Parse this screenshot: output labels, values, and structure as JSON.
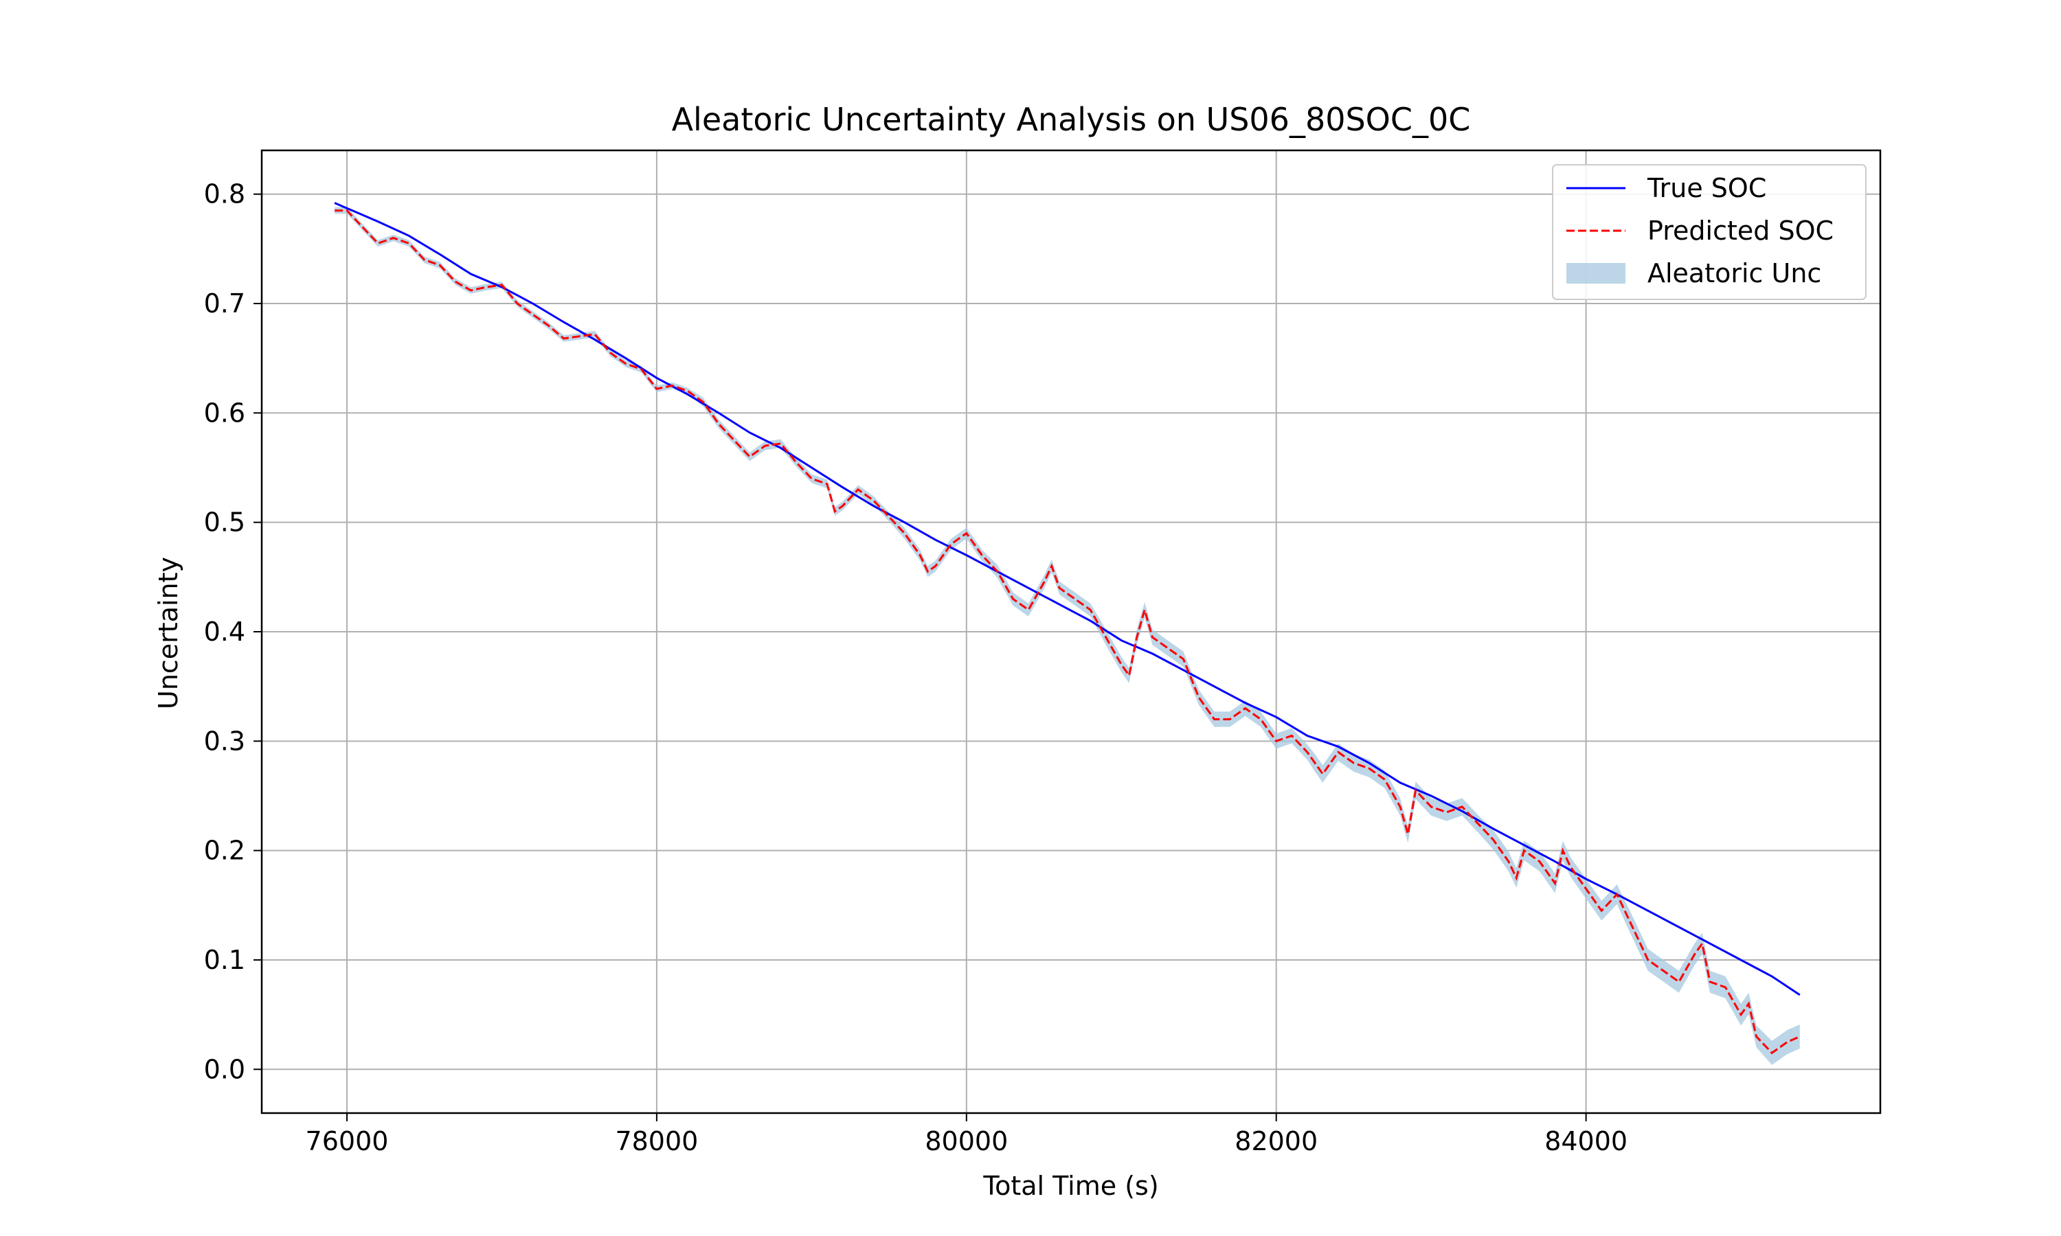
{
  "chart_data": {
    "type": "line",
    "title": "Aleatoric Uncertainty Analysis on US06_80SOC_0C",
    "xlabel": "Total Time (s)",
    "ylabel": "Uncertainty",
    "xlim": [
      75450,
      85900
    ],
    "ylim": [
      -0.04,
      0.84
    ],
    "xticks": [
      76000,
      78000,
      80000,
      82000,
      84000
    ],
    "xtick_labels": [
      "76000",
      "78000",
      "80000",
      "82000",
      "84000"
    ],
    "yticks": [
      0.0,
      0.1,
      0.2,
      0.3,
      0.4,
      0.5,
      0.6,
      0.7,
      0.8
    ],
    "ytick_labels": [
      "0.0",
      "0.1",
      "0.2",
      "0.3",
      "0.4",
      "0.5",
      "0.6",
      "0.7",
      "0.8"
    ],
    "grid": true,
    "legend_position": "top-right",
    "legend": [
      "True SOC",
      "Predicted SOC",
      "Aleatoric Unc"
    ],
    "colors": {
      "true": "#0000ff",
      "predicted": "#ff0000",
      "band": "#a6c8e0"
    },
    "series": [
      {
        "name": "True SOC",
        "style": "solid",
        "x": [
          75920,
          76200,
          76400,
          76600,
          76800,
          77000,
          77200,
          77400,
          77600,
          77800,
          78000,
          78200,
          78400,
          78600,
          78800,
          79000,
          79200,
          79400,
          79600,
          79800,
          80000,
          80200,
          80400,
          80600,
          80800,
          81000,
          81200,
          81400,
          81600,
          81800,
          82000,
          82200,
          82400,
          82600,
          82800,
          83000,
          83200,
          83400,
          83600,
          83800,
          84000,
          84200,
          84400,
          84600,
          84800,
          85000,
          85200,
          85380
        ],
        "y": [
          0.792,
          0.775,
          0.762,
          0.745,
          0.727,
          0.715,
          0.7,
          0.683,
          0.667,
          0.65,
          0.632,
          0.617,
          0.6,
          0.582,
          0.568,
          0.55,
          0.532,
          0.515,
          0.5,
          0.484,
          0.47,
          0.455,
          0.44,
          0.425,
          0.41,
          0.392,
          0.38,
          0.365,
          0.35,
          0.335,
          0.322,
          0.305,
          0.295,
          0.28,
          0.262,
          0.25,
          0.236,
          0.22,
          0.205,
          0.19,
          0.174,
          0.16,
          0.145,
          0.13,
          0.115,
          0.1,
          0.085,
          0.068
        ]
      },
      {
        "name": "Predicted SOC",
        "style": "dashed",
        "x": [
          75920,
          76000,
          76100,
          76200,
          76300,
          76400,
          76500,
          76600,
          76700,
          76800,
          76900,
          77000,
          77100,
          77200,
          77300,
          77400,
          77500,
          77600,
          77700,
          77800,
          77900,
          78000,
          78100,
          78200,
          78300,
          78400,
          78500,
          78600,
          78700,
          78800,
          78900,
          79000,
          79100,
          79150,
          79200,
          79300,
          79400,
          79500,
          79600,
          79700,
          79750,
          79800,
          79900,
          80000,
          80100,
          80200,
          80300,
          80400,
          80500,
          80550,
          80600,
          80700,
          80800,
          80900,
          81000,
          81050,
          81100,
          81150,
          81200,
          81300,
          81400,
          81500,
          81600,
          81700,
          81800,
          81900,
          82000,
          82100,
          82200,
          82250,
          82300,
          82400,
          82500,
          82600,
          82700,
          82800,
          82850,
          82900,
          83000,
          83100,
          83200,
          83300,
          83400,
          83500,
          83550,
          83600,
          83700,
          83800,
          83850,
          83900,
          84000,
          84100,
          84200,
          84300,
          84400,
          84500,
          84600,
          84700,
          84750,
          84800,
          84900,
          85000,
          85050,
          85100,
          85200,
          85300,
          85380
        ],
        "y": [
          0.785,
          0.785,
          0.77,
          0.755,
          0.76,
          0.755,
          0.74,
          0.735,
          0.72,
          0.712,
          0.715,
          0.717,
          0.7,
          0.69,
          0.68,
          0.668,
          0.67,
          0.672,
          0.655,
          0.645,
          0.64,
          0.622,
          0.625,
          0.62,
          0.61,
          0.59,
          0.575,
          0.56,
          0.57,
          0.572,
          0.555,
          0.54,
          0.535,
          0.51,
          0.515,
          0.53,
          0.52,
          0.505,
          0.49,
          0.47,
          0.455,
          0.46,
          0.48,
          0.49,
          0.47,
          0.455,
          0.43,
          0.42,
          0.445,
          0.46,
          0.44,
          0.43,
          0.42,
          0.395,
          0.37,
          0.36,
          0.395,
          0.42,
          0.395,
          0.385,
          0.375,
          0.34,
          0.32,
          0.32,
          0.33,
          0.32,
          0.3,
          0.305,
          0.29,
          0.28,
          0.27,
          0.29,
          0.28,
          0.275,
          0.265,
          0.24,
          0.215,
          0.255,
          0.24,
          0.235,
          0.24,
          0.225,
          0.21,
          0.19,
          0.175,
          0.2,
          0.19,
          0.17,
          0.2,
          0.185,
          0.165,
          0.145,
          0.16,
          0.13,
          0.1,
          0.09,
          0.08,
          0.105,
          0.115,
          0.08,
          0.075,
          0.05,
          0.06,
          0.03,
          0.015,
          0.025,
          0.03
        ]
      }
    ],
    "band": {
      "name": "Aleatoric Unc",
      "halfwidth": [
        0.003,
        0.003,
        0.003,
        0.003,
        0.003,
        0.003,
        0.003,
        0.003,
        0.003,
        0.003,
        0.003,
        0.003,
        0.003,
        0.003,
        0.003,
        0.003,
        0.003,
        0.003,
        0.003,
        0.003,
        0.003,
        0.003,
        0.003,
        0.003,
        0.004,
        0.004,
        0.004,
        0.004,
        0.004,
        0.004,
        0.004,
        0.004,
        0.004,
        0.004,
        0.004,
        0.004,
        0.004,
        0.004,
        0.005,
        0.005,
        0.005,
        0.005,
        0.005,
        0.005,
        0.005,
        0.006,
        0.006,
        0.006,
        0.006,
        0.006,
        0.006,
        0.006,
        0.006,
        0.007,
        0.007,
        0.007,
        0.007,
        0.007,
        0.007,
        0.007,
        0.007,
        0.007,
        0.007,
        0.007,
        0.007,
        0.007,
        0.007,
        0.007,
        0.007,
        0.008,
        0.008,
        0.008,
        0.008,
        0.008,
        0.008,
        0.008,
        0.008,
        0.008,
        0.008,
        0.008,
        0.008,
        0.008,
        0.009,
        0.009,
        0.009,
        0.009,
        0.009,
        0.009,
        0.009,
        0.009,
        0.009,
        0.009,
        0.009,
        0.01,
        0.01,
        0.01,
        0.01,
        0.01,
        0.01,
        0.01,
        0.01,
        0.01,
        0.01,
        0.01,
        0.011,
        0.011,
        0.011
      ]
    }
  }
}
